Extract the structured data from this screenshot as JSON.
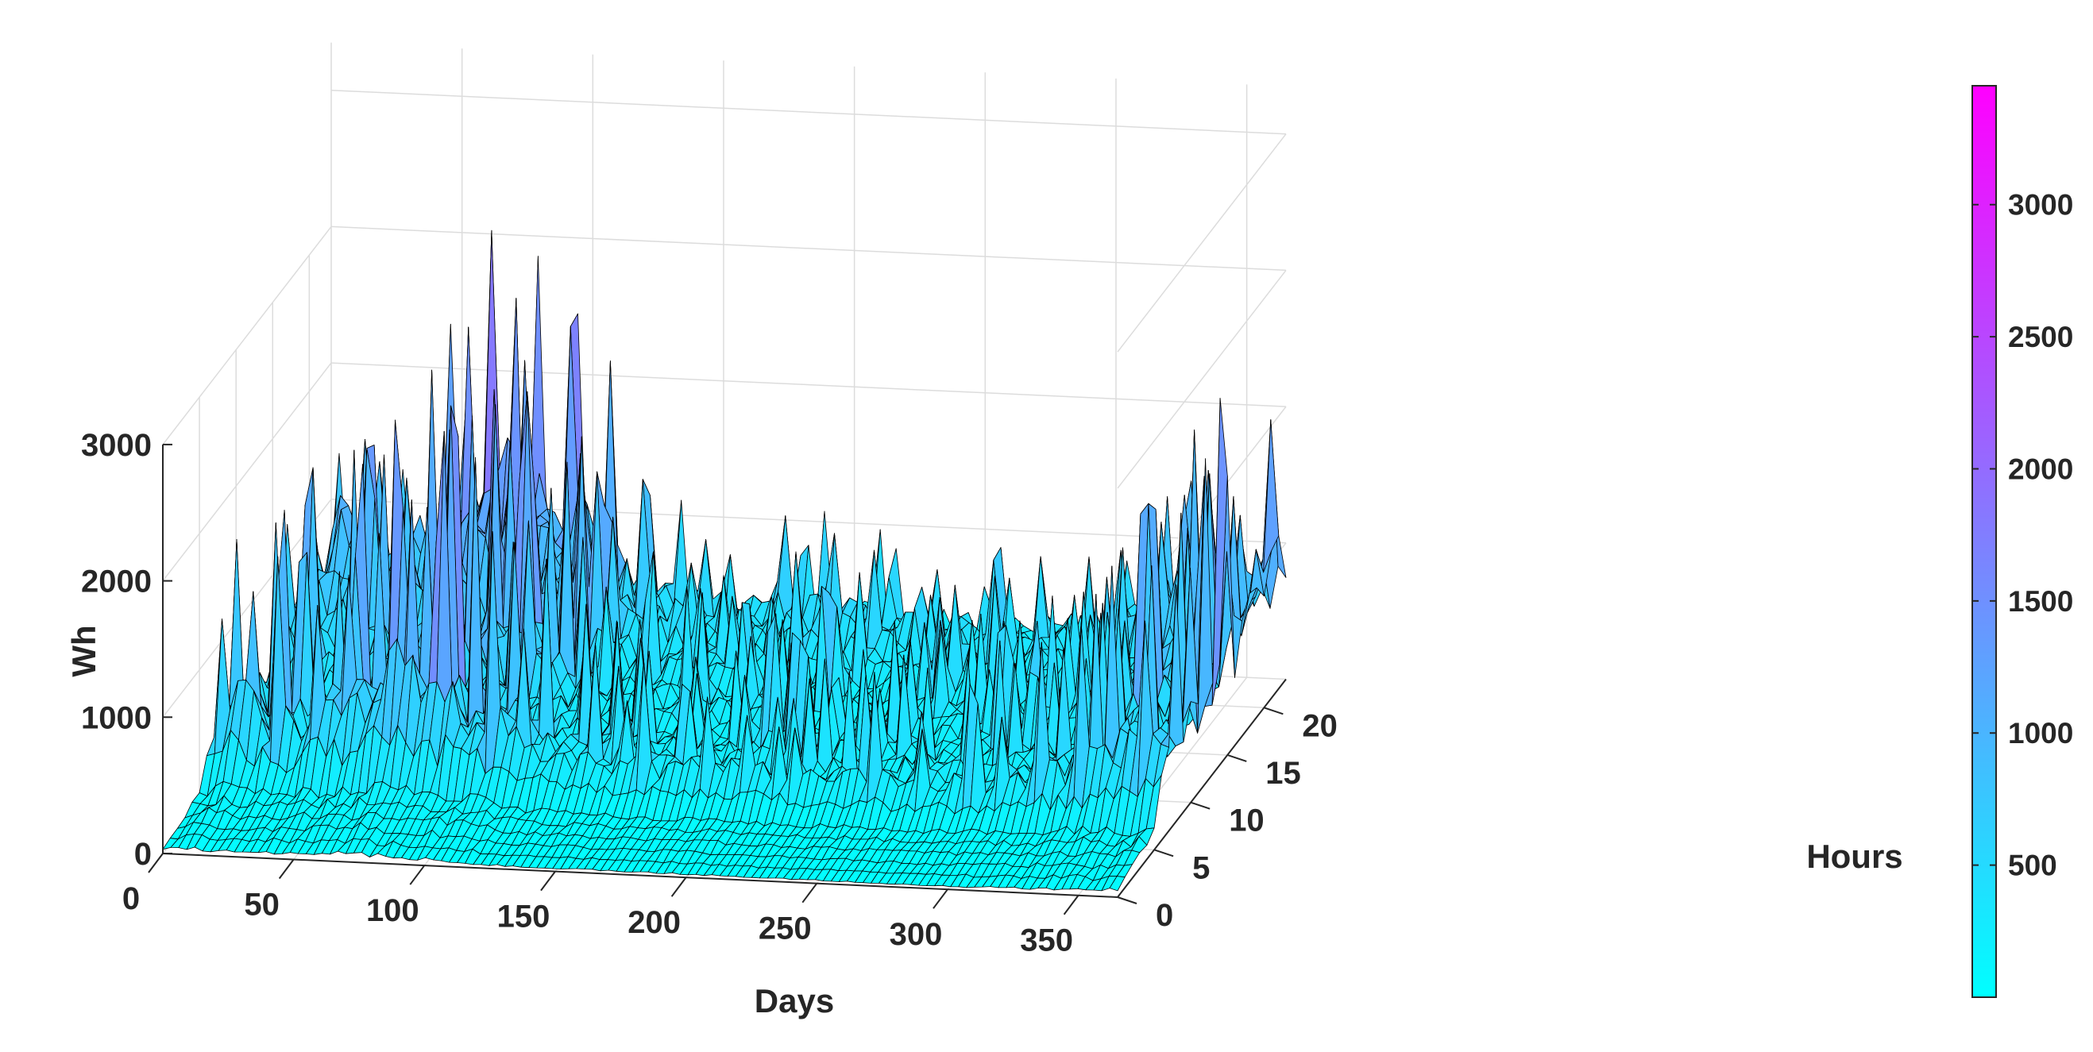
{
  "chart_data": {
    "type": "surface3d",
    "title": "",
    "xlabel": "Days",
    "ylabel": "Hours",
    "zlabel": "Wh",
    "xlim": [
      0,
      365
    ],
    "ylim": [
      0,
      23
    ],
    "zlim": [
      0,
      3000
    ],
    "x_ticks": [
      "0",
      "50",
      "100",
      "150",
      "200",
      "250",
      "300",
      "350"
    ],
    "y_ticks": [
      "0",
      "5",
      "10",
      "15",
      "20"
    ],
    "z_ticks": [
      "0",
      "1000",
      "2000",
      "3000"
    ],
    "colormap": "cool",
    "colorbar": {
      "range": [
        0,
        3450
      ],
      "ticks": [
        "500",
        "1000",
        "1500",
        "2000",
        "2500",
        "3000"
      ],
      "color_low": "#00ffff",
      "color_high": "#ff00ff"
    },
    "grid": true,
    "edge_color": "#000000",
    "daily_peak_profile": {
      "days": [
        0,
        10,
        20,
        30,
        40,
        50,
        60,
        70,
        80,
        90,
        100,
        110,
        120,
        130,
        150,
        175,
        200,
        225,
        250,
        275,
        300,
        320,
        335,
        345,
        355,
        365
      ],
      "peak_wh": [
        1500,
        2500,
        2000,
        1800,
        2300,
        2400,
        2700,
        3400,
        2900,
        2600,
        2500,
        2200,
        1500,
        1300,
        1200,
        1100,
        1200,
        1000,
        1100,
        1000,
        1200,
        1500,
        1900,
        2300,
        2000,
        2700
      ]
    }
  }
}
